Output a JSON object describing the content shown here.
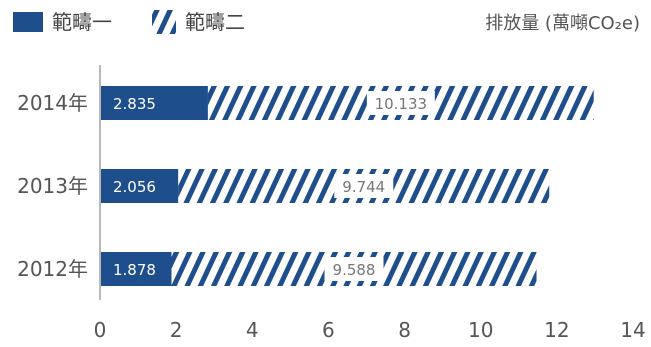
{
  "chart_data": {
    "type": "bar",
    "orientation": "horizontal",
    "stacked": true,
    "unit_label": "排放量 (萬噸CO₂e)",
    "categories": [
      "2014年",
      "2013年",
      "2012年"
    ],
    "series": [
      {
        "name": "範疇一",
        "values": [
          2.835,
          2.056,
          1.878
        ],
        "color": "#1f4e8c",
        "fill": "solid"
      },
      {
        "name": "範疇二",
        "values": [
          10.133,
          9.744,
          9.588
        ],
        "color": "#1f4e8c",
        "fill": "hatched"
      }
    ],
    "data_labels": {
      "scope1": [
        "2.835",
        "2.056",
        "1.878"
      ],
      "scope2": [
        "10.133",
        "9.744",
        "9.588"
      ]
    },
    "xlim": [
      0,
      14
    ],
    "xticks": [
      "0",
      "2",
      "4",
      "6",
      "8",
      "10",
      "12",
      "14"
    ],
    "legend_position": "top-left",
    "grid": false
  }
}
